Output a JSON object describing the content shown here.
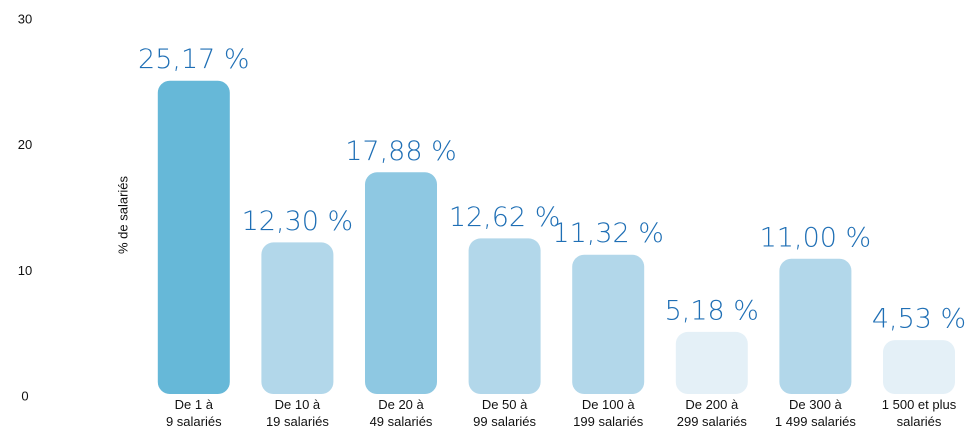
{
  "chart_data": {
    "type": "bar",
    "y_label": "% de salariés",
    "categories": [
      [
        "De 1 à",
        "9 salariés"
      ],
      [
        "De 10 à",
        "19 salariés"
      ],
      [
        "De 20 à",
        "49 salariés"
      ],
      [
        "De 50 à",
        "99 salariés"
      ],
      [
        "De 100 à",
        "199 salariés"
      ],
      [
        "De 200 à",
        "299 salariés"
      ],
      [
        "De 300 à",
        "1 499 salariés"
      ],
      [
        "1 500 et plus",
        "salariés"
      ]
    ],
    "values": [
      25.17,
      12.3,
      17.88,
      12.62,
      11.32,
      5.18,
      11.0,
      4.53
    ],
    "value_labels": [
      "25,17 %",
      "12,30 %",
      "17,88 %",
      "12,62 %",
      "11,32 %",
      "5,18 %",
      "11,00 %",
      "4,53 %"
    ],
    "colors": [
      "#66b8d8",
      "#b2d7ea",
      "#8ec8e2",
      "#b2d7ea",
      "#b2d7ea",
      "#e4f0f7",
      "#b2d7ea",
      "#e4f0f7"
    ],
    "label_color": "#1f6fb5",
    "ylim": [
      0,
      30
    ],
    "yticks": [
      0,
      10,
      20,
      30
    ],
    "grid": false
  }
}
